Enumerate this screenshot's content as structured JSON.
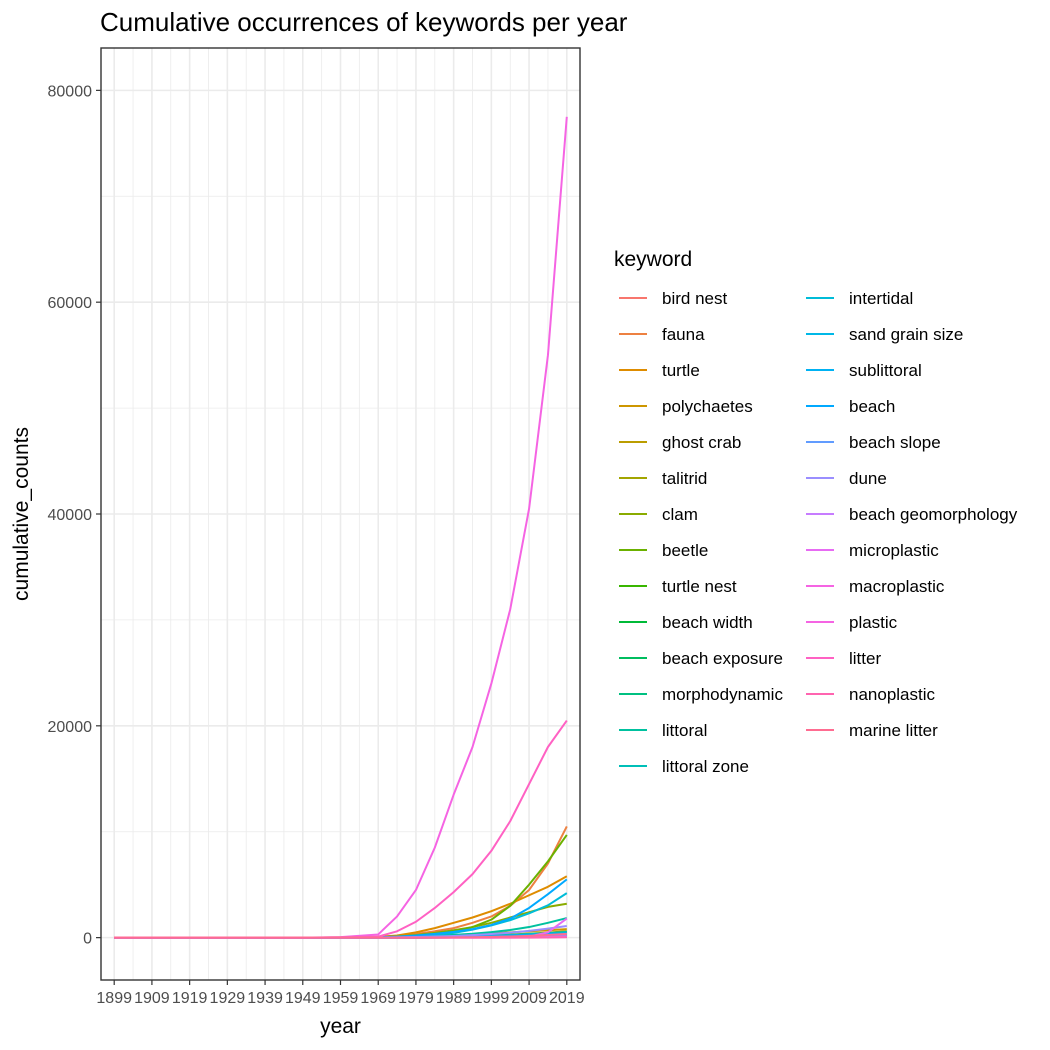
{
  "chart_data": {
    "type": "line",
    "title": "Cumulative occurrences of keywords per year",
    "xlabel": "year",
    "ylabel": "cumulative_counts",
    "x_ticks": [
      "1899",
      "1909",
      "1919",
      "1929",
      "1939",
      "1949",
      "1959",
      "1969",
      "1979",
      "1989",
      "1999",
      "2009",
      "2019"
    ],
    "y_ticks": [
      "0",
      "20000",
      "40000",
      "60000",
      "80000"
    ],
    "xlim": [
      1895.5,
      2022.5
    ],
    "ylim": [
      -4000,
      84000
    ],
    "grid": true,
    "legend": {
      "title": "keyword",
      "placement": "right",
      "columns": 2
    },
    "x": [
      1899,
      1909,
      1919,
      1929,
      1939,
      1949,
      1959,
      1969,
      1974,
      1979,
      1984,
      1989,
      1994,
      1999,
      2004,
      2009,
      2014,
      2019
    ],
    "series": [
      {
        "name": "bird nest",
        "color": "#F8766D",
        "values": [
          0,
          0,
          0,
          0,
          0,
          0,
          0,
          0,
          2,
          5,
          8,
          12,
          18,
          25,
          35,
          50,
          70,
          100
        ]
      },
      {
        "name": "fauna",
        "color": "#ED8141",
        "values": [
          0,
          0,
          0,
          0,
          0,
          0,
          10,
          50,
          150,
          350,
          600,
          900,
          1400,
          2000,
          3000,
          4500,
          7000,
          10500
        ]
      },
      {
        "name": "turtle",
        "color": "#DE8C00",
        "values": [
          0,
          0,
          0,
          0,
          0,
          0,
          20,
          80,
          200,
          500,
          900,
          1400,
          1900,
          2500,
          3200,
          4000,
          4800,
          5800
        ]
      },
      {
        "name": "polychaetes",
        "color": "#CD9600",
        "values": [
          0,
          0,
          0,
          0,
          0,
          0,
          5,
          20,
          50,
          100,
          150,
          220,
          300,
          400,
          500,
          600,
          700,
          800
        ]
      },
      {
        "name": "ghost crab",
        "color": "#BB9D00",
        "values": [
          0,
          0,
          0,
          0,
          0,
          0,
          0,
          0,
          1,
          3,
          6,
          10,
          15,
          22,
          30,
          40,
          55,
          70
        ]
      },
      {
        "name": "talitrid",
        "color": "#A3A500",
        "values": [
          0,
          0,
          0,
          0,
          0,
          0,
          0,
          5,
          20,
          50,
          80,
          120,
          170,
          230,
          300,
          380,
          470,
          600
        ]
      },
      {
        "name": "clam",
        "color": "#8AAB00",
        "values": [
          0,
          0,
          0,
          0,
          0,
          0,
          10,
          40,
          100,
          250,
          450,
          700,
          1000,
          1400,
          1900,
          2400,
          2900,
          3200
        ]
      },
      {
        "name": "beetle",
        "color": "#6BB100",
        "values": [
          0,
          0,
          0,
          0,
          0,
          0,
          10,
          40,
          100,
          200,
          350,
          600,
          1000,
          1700,
          3000,
          5000,
          7200,
          9700
        ]
      },
      {
        "name": "turtle nest",
        "color": "#39B600",
        "values": [
          0,
          0,
          0,
          0,
          0,
          0,
          0,
          0,
          2,
          5,
          10,
          15,
          22,
          30,
          40,
          55,
          70,
          90
        ]
      },
      {
        "name": "beach width",
        "color": "#00BA38",
        "values": [
          0,
          0,
          0,
          0,
          0,
          0,
          0,
          2,
          5,
          10,
          20,
          35,
          55,
          80,
          110,
          150,
          200,
          260
        ]
      },
      {
        "name": "beach exposure",
        "color": "#00BD5F",
        "values": [
          0,
          0,
          0,
          0,
          0,
          0,
          0,
          0,
          1,
          3,
          5,
          8,
          12,
          18,
          25,
          35,
          45,
          60
        ]
      },
      {
        "name": "morphodynamic",
        "color": "#00C081",
        "values": [
          0,
          0,
          0,
          0,
          0,
          0,
          0,
          0,
          0,
          5,
          15,
          35,
          70,
          120,
          190,
          280,
          390,
          520
        ]
      },
      {
        "name": "littoral",
        "color": "#00C19F",
        "values": [
          0,
          0,
          0,
          0,
          0,
          0,
          5,
          20,
          50,
          100,
          170,
          260,
          370,
          520,
          720,
          1000,
          1400,
          1850
        ]
      },
      {
        "name": "littoral zone",
        "color": "#00BFB8",
        "values": [
          0,
          0,
          0,
          0,
          0,
          0,
          0,
          5,
          15,
          35,
          60,
          95,
          140,
          195,
          260,
          340,
          430,
          540
        ]
      },
      {
        "name": "intertidal",
        "color": "#00BCD8",
        "values": [
          0,
          0,
          0,
          0,
          0,
          0,
          5,
          20,
          60,
          130,
          250,
          450,
          750,
          1150,
          1650,
          2300,
          3050,
          4200
        ]
      },
      {
        "name": "sand grain size",
        "color": "#00B8E7",
        "values": [
          0,
          0,
          0,
          0,
          0,
          0,
          0,
          2,
          5,
          10,
          18,
          28,
          40,
          55,
          75,
          100,
          130,
          170
        ]
      },
      {
        "name": "sublittoral",
        "color": "#00B2F3",
        "values": [
          0,
          0,
          0,
          0,
          0,
          0,
          0,
          5,
          15,
          30,
          50,
          80,
          115,
          160,
          210,
          270,
          340,
          420
        ]
      },
      {
        "name": "beach",
        "color": "#00A9FF",
        "values": [
          0,
          0,
          0,
          0,
          0,
          0,
          10,
          40,
          100,
          200,
          350,
          550,
          800,
          1200,
          1800,
          2800,
          4100,
          5500
        ]
      },
      {
        "name": "beach slope",
        "color": "#619CFF",
        "values": [
          0,
          0,
          0,
          0,
          0,
          0,
          0,
          2,
          5,
          12,
          20,
          32,
          48,
          68,
          92,
          120,
          155,
          195
        ]
      },
      {
        "name": "dune",
        "color": "#9A8EFF",
        "values": [
          0,
          0,
          0,
          0,
          0,
          0,
          5,
          15,
          35,
          65,
          105,
          160,
          240,
          340,
          470,
          640,
          850,
          1100
        ]
      },
      {
        "name": "beach geomorphology",
        "color": "#C77CFF",
        "values": [
          0,
          0,
          0,
          0,
          0,
          0,
          0,
          0,
          1,
          3,
          6,
          10,
          16,
          24,
          34,
          46,
          60,
          80
        ]
      },
      {
        "name": "microplastic",
        "color": "#E76BF3",
        "values": [
          0,
          0,
          0,
          0,
          0,
          0,
          0,
          0,
          0,
          0,
          0,
          0,
          0,
          2,
          20,
          100,
          500,
          1800
        ]
      },
      {
        "name": "macroplastic",
        "color": "#F564E3",
        "values": [
          0,
          0,
          0,
          0,
          0,
          0,
          0,
          0,
          0,
          0,
          0,
          0,
          0,
          0,
          2,
          10,
          40,
          120
        ]
      },
      {
        "name": "plastic",
        "color": "#F564E3",
        "values": [
          0,
          0,
          0,
          0,
          0,
          0,
          50,
          300,
          2000,
          4500,
          8500,
          13500,
          18000,
          24000,
          31000,
          40500,
          55000,
          77500
        ]
      },
      {
        "name": "litter",
        "color": "#FF61C3",
        "values": [
          0,
          0,
          0,
          0,
          0,
          0,
          20,
          100,
          600,
          1500,
          2800,
          4300,
          6000,
          8200,
          11000,
          14500,
          18000,
          20500
        ]
      },
      {
        "name": "nanoplastic",
        "color": "#FF64B0",
        "values": [
          0,
          0,
          0,
          0,
          0,
          0,
          0,
          0,
          0,
          0,
          0,
          0,
          0,
          0,
          0,
          2,
          10,
          40
        ]
      },
      {
        "name": "marine litter",
        "color": "#FF6C91",
        "values": [
          0,
          0,
          0,
          0,
          0,
          0,
          0,
          0,
          0,
          2,
          8,
          20,
          40,
          70,
          110,
          170,
          250,
          350
        ]
      }
    ]
  }
}
